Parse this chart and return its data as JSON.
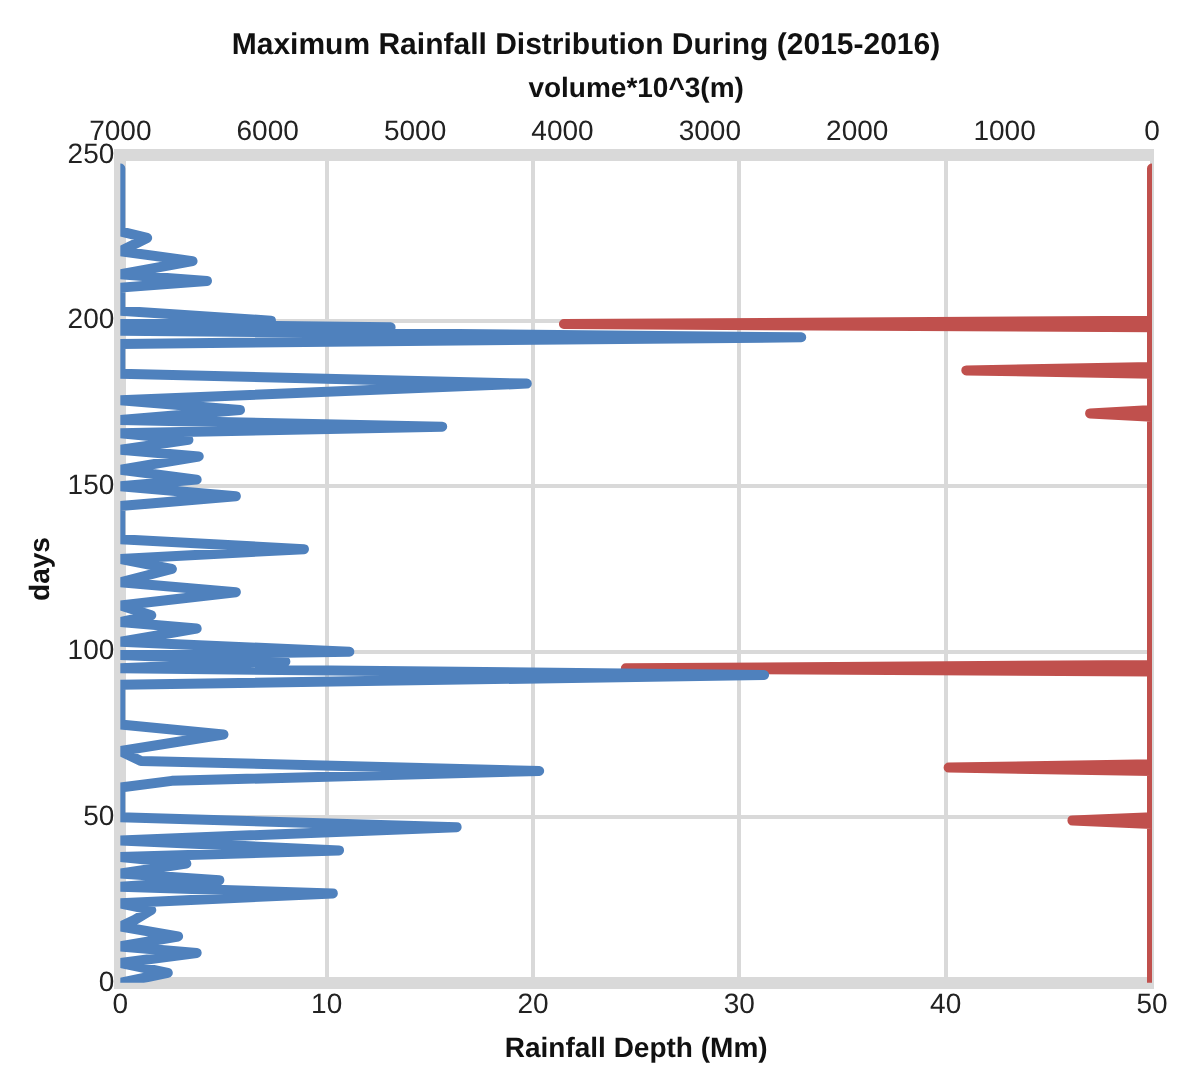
{
  "chart_data": {
    "type": "line",
    "title": "Maximum Rainfall Distribution During (2015-2016)",
    "xlabel": "Rainfall Depth (Mm)",
    "x2label": "volume*10^3(m)",
    "ylabel": "days",
    "xlim": [
      0,
      50
    ],
    "xticks": [
      0,
      10,
      20,
      30,
      40,
      50
    ],
    "x2lim": [
      7000,
      0
    ],
    "x2ticks": [
      7000,
      6000,
      5000,
      4000,
      3000,
      2000,
      1000,
      0
    ],
    "ylim": [
      0,
      250
    ],
    "yticks": [
      0,
      50,
      100,
      150,
      200,
      250
    ],
    "grid": true,
    "legend": false,
    "marker": "none",
    "line_style": "solid",
    "series": [
      {
        "color": "#4f81bd",
        "x": [
          0,
          2.3,
          0,
          3.7,
          0,
          2.8,
          0,
          0.7,
          1.5,
          0,
          10.3,
          0,
          4.8,
          0,
          3.2,
          0,
          10.6,
          0,
          16.3,
          0,
          0,
          2.5,
          20.3,
          1,
          0,
          5,
          0,
          0,
          31.2,
          0,
          8,
          0,
          11.1,
          0,
          3.7,
          0,
          1.5,
          0,
          5.6,
          0,
          2.5,
          0,
          8.9,
          0,
          0,
          5.6,
          0,
          3.7,
          0,
          3.8,
          0,
          3.3,
          0,
          15.6,
          0,
          5.8,
          0,
          19.7,
          0,
          0,
          33,
          0,
          13.1,
          0,
          7.3,
          0,
          0,
          4.2,
          0,
          3.5,
          0,
          1.3,
          0,
          0
        ],
        "values": [
          0,
          3,
          6,
          9,
          11,
          14,
          17,
          19,
          22,
          24,
          27,
          29,
          31,
          33,
          36,
          38,
          40,
          43,
          47,
          50,
          59,
          61,
          64,
          67,
          70,
          75,
          78,
          90,
          93,
          95,
          97,
          99,
          100,
          103,
          107,
          109,
          111,
          114,
          118,
          121,
          125,
          128,
          131,
          134,
          144,
          147,
          150,
          152,
          155,
          159,
          161,
          164,
          166,
          168,
          170,
          173,
          176,
          181,
          184,
          193,
          195,
          197,
          198,
          199,
          200,
          203,
          210,
          212,
          214,
          218,
          221,
          225,
          227,
          246
        ]
      },
      {
        "color": "#c0504d",
        "axis": "x2",
        "x": [
          0,
          0,
          540,
          0,
          0,
          1380,
          0,
          0,
          3570,
          0,
          0,
          420,
          0,
          0,
          1260,
          0,
          0,
          3990,
          0,
          0
        ],
        "values": [
          0,
          48,
          49,
          50,
          64,
          65,
          66,
          94,
          95,
          96,
          171,
          172,
          173,
          184,
          185,
          186,
          198,
          199,
          200,
          246
        ]
      }
    ]
  }
}
